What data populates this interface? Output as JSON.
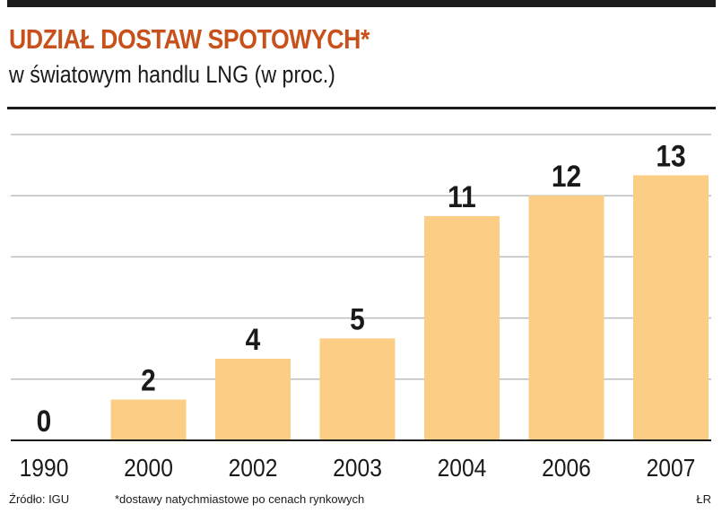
{
  "header": {
    "title": "UDZIAŁ DOSTAW SPOTOWYCH*",
    "subtitle": "w światowym handlu LNG (w proc.)"
  },
  "footer": {
    "source": "Źródło: IGU",
    "note": "*dostawy natychmiastowe po cenach rynkowych",
    "credit": "ŁR"
  },
  "colors": {
    "bar": "#fbcd85",
    "grid": "#bdbdbd",
    "axis": "#1c1c1c",
    "title": "#c8511b",
    "text": "#1a1a1a"
  },
  "chart_data": {
    "type": "bar",
    "categories": [
      "1990",
      "2000",
      "2002",
      "2003",
      "2004",
      "2006",
      "2007"
    ],
    "values": [
      0,
      2,
      4,
      5,
      11,
      12,
      13
    ],
    "data_labels": [
      "0",
      "2",
      "4",
      "5",
      "11",
      "12",
      "13"
    ],
    "ylim": [
      0,
      15
    ],
    "grid": true,
    "title": "UDZIAŁ DOSTAW SPOTOWYCH*",
    "subtitle": "w światowym handlu LNG (w proc.)"
  }
}
